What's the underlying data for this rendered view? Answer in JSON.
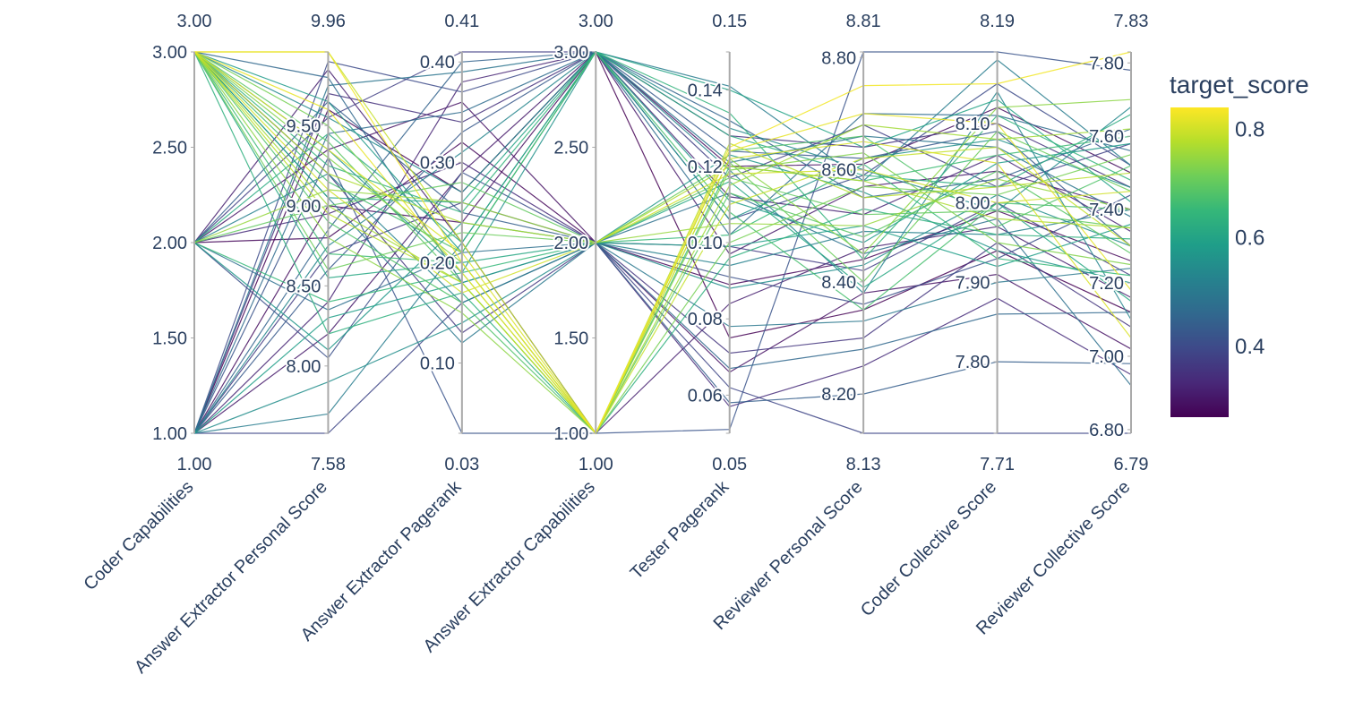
{
  "chart_data": {
    "type": "parcoords",
    "color_variable": "target_score",
    "colorscale": "Viridis",
    "color_range": [
      0.27,
      0.84
    ],
    "colorbar": {
      "title": "target_score",
      "ticks": [
        0.4,
        0.6,
        0.8
      ],
      "tick_labels": [
        "0.4",
        "0.6",
        "0.8"
      ]
    },
    "dimensions": [
      {
        "label": "Coder Capabilities",
        "range": [
          1.0,
          3.0
        ],
        "range_labels": {
          "min": "1.00",
          "max": "3.00"
        },
        "ticks": [
          1.0,
          1.5,
          2.0,
          2.5,
          3.0
        ],
        "tick_labels": [
          "1.00",
          "1.50",
          "2.00",
          "2.50",
          "3.00"
        ]
      },
      {
        "label": "Answer Extractor Personal Score",
        "range": [
          7.58,
          9.96
        ],
        "range_labels": {
          "min": "7.58",
          "max": "9.96"
        },
        "ticks": [
          8.0,
          8.5,
          9.0,
          9.5
        ],
        "tick_labels": [
          "8.00",
          "8.50",
          "9.00",
          "9.50"
        ]
      },
      {
        "label": "Answer Extractor Pagerank",
        "range": [
          0.03,
          0.41
        ],
        "range_labels": {
          "min": "0.03",
          "max": "0.41"
        },
        "ticks": [
          0.1,
          0.2,
          0.3,
          0.4
        ],
        "tick_labels": [
          "0.10",
          "0.20",
          "0.30",
          "0.40"
        ]
      },
      {
        "label": "Answer Extractor Capabilities",
        "range": [
          1.0,
          3.0
        ],
        "range_labels": {
          "min": "1.00",
          "max": "3.00"
        },
        "ticks": [
          1.0,
          1.5,
          2.0,
          2.5,
          3.0
        ],
        "tick_labels": [
          "1.00",
          "1.50",
          "2.00",
          "2.50",
          "3.00"
        ]
      },
      {
        "label": "Tester Pagerank",
        "range": [
          0.05,
          0.15
        ],
        "range_labels": {
          "min": "0.05",
          "max": "0.15"
        },
        "ticks": [
          0.06,
          0.08,
          0.1,
          0.12,
          0.14
        ],
        "tick_labels": [
          "0.06",
          "0.08",
          "0.10",
          "0.12",
          "0.14"
        ]
      },
      {
        "label": "Reviewer Personal Score",
        "range": [
          8.13,
          8.81
        ],
        "range_labels": {
          "min": "8.13",
          "max": "8.81"
        },
        "ticks": [
          8.2,
          8.4,
          8.6,
          8.8
        ],
        "tick_labels": [
          "8.20",
          "8.40",
          "8.60",
          "8.80"
        ]
      },
      {
        "label": "Coder Collective Score",
        "range": [
          7.71,
          8.19
        ],
        "range_labels": {
          "min": "7.71",
          "max": "8.19"
        },
        "ticks": [
          7.8,
          7.9,
          8.0,
          8.1
        ],
        "tick_labels": [
          "7.80",
          "7.90",
          "8.00",
          "8.10"
        ]
      },
      {
        "label": "Reviewer Collective Score",
        "range": [
          6.79,
          7.83
        ],
        "range_labels": {
          "min": "6.79",
          "max": "7.83"
        },
        "ticks": [
          6.8,
          7.0,
          7.2,
          7.4,
          7.6,
          7.8
        ],
        "tick_labels": [
          "6.80",
          "7.00",
          "7.20",
          "7.40",
          "7.60",
          "7.80"
        ]
      }
    ],
    "lines": [
      {
        "score": 0.83,
        "values": [
          3,
          9.96,
          0.2,
          1,
          0.125,
          8.75,
          8.15,
          7.83
        ]
      },
      {
        "score": 0.82,
        "values": [
          3,
          9.6,
          0.19,
          1,
          0.124,
          8.7,
          8.1,
          7.18
        ]
      },
      {
        "score": 0.81,
        "values": [
          3,
          9.35,
          0.21,
          1,
          0.122,
          8.65,
          8.05,
          7.05
        ]
      },
      {
        "score": 0.8,
        "values": [
          3,
          9.1,
          0.17,
          2,
          0.118,
          8.6,
          8.0,
          7.45
        ]
      },
      {
        "score": 0.79,
        "values": [
          3,
          9.96,
          0.22,
          1,
          0.11,
          8.62,
          8.07,
          7.3
        ]
      },
      {
        "score": 0.78,
        "values": [
          3,
          8.95,
          0.18,
          1,
          0.126,
          8.55,
          8.02,
          7.5
        ]
      },
      {
        "score": 0.77,
        "values": [
          3,
          9.2,
          0.24,
          2,
          0.12,
          8.58,
          7.98,
          7.35
        ]
      },
      {
        "score": 0.76,
        "values": [
          3,
          9.0,
          0.18,
          1,
          0.115,
          8.68,
          8.08,
          7.62
        ]
      },
      {
        "score": 0.75,
        "values": [
          2,
          9.1,
          0.26,
          2,
          0.105,
          8.5,
          8.03,
          7.4
        ]
      },
      {
        "score": 0.74,
        "values": [
          3,
          8.8,
          0.15,
          1,
          0.122,
          8.45,
          8.12,
          7.7
        ]
      },
      {
        "score": 0.73,
        "values": [
          3,
          9.3,
          0.2,
          1,
          0.119,
          8.63,
          7.95,
          7.25
        ]
      },
      {
        "score": 0.72,
        "values": [
          3,
          9.5,
          0.19,
          1,
          0.1,
          8.57,
          8.01,
          7.55
        ]
      },
      {
        "score": 0.71,
        "values": [
          3,
          8.6,
          0.23,
          2,
          0.121,
          8.4,
          8.09,
          7.45
        ]
      },
      {
        "score": 0.7,
        "values": [
          2,
          9.0,
          0.28,
          2,
          0.117,
          8.52,
          7.99,
          7.35
        ]
      },
      {
        "score": 0.69,
        "values": [
          3,
          9.4,
          0.18,
          1,
          0.113,
          8.48,
          8.04,
          7.28
        ]
      },
      {
        "score": 0.68,
        "values": [
          3,
          8.9,
          0.16,
          1,
          0.124,
          8.66,
          7.97,
          7.52
        ]
      },
      {
        "score": 0.67,
        "values": [
          3,
          9.15,
          0.21,
          3,
          0.108,
          8.35,
          8.0,
          7.4
        ]
      },
      {
        "score": 0.66,
        "values": [
          3,
          8.7,
          0.2,
          1,
          0.12,
          8.58,
          8.06,
          7.6
        ]
      },
      {
        "score": 0.65,
        "values": [
          2,
          8.4,
          0.19,
          2,
          0.102,
          8.61,
          7.93,
          7.22
        ]
      },
      {
        "score": 0.64,
        "values": [
          3,
          9.25,
          0.25,
          3,
          0.134,
          8.44,
          8.11,
          7.48
        ]
      },
      {
        "score": 0.63,
        "values": [
          3,
          8.2,
          0.17,
          1,
          0.096,
          8.53,
          7.96,
          7.32
        ]
      },
      {
        "score": 0.62,
        "values": [
          2,
          9.45,
          0.22,
          3,
          0.128,
          8.59,
          8.02,
          7.66
        ]
      },
      {
        "score": 0.61,
        "values": [
          3,
          8.55,
          0.2,
          2,
          0.116,
          8.39,
          8.0,
          7.15
        ]
      },
      {
        "score": 0.6,
        "values": [
          3,
          9.05,
          0.26,
          3,
          0.14,
          8.64,
          8.13,
          7.42
        ]
      },
      {
        "score": 0.59,
        "values": [
          1,
          8.3,
          0.18,
          2,
          0.099,
          8.5,
          7.92,
          7.36
        ]
      },
      {
        "score": 0.58,
        "values": [
          3,
          9.65,
          0.21,
          3,
          0.111,
          8.47,
          8.05,
          7.58
        ]
      },
      {
        "score": 0.57,
        "values": [
          2,
          8.1,
          0.24,
          2,
          0.123,
          8.56,
          7.94,
          7.2
        ]
      },
      {
        "score": 0.56,
        "values": [
          3,
          9.35,
          0.19,
          3,
          0.106,
          8.62,
          8.08,
          7.46
        ]
      },
      {
        "score": 0.55,
        "values": [
          1,
          7.9,
          0.14,
          2,
          0.088,
          8.43,
          8.01,
          7.3
        ]
      },
      {
        "score": 0.54,
        "values": [
          3,
          9.55,
          0.27,
          3,
          0.13,
          8.6,
          7.99,
          7.68
        ]
      },
      {
        "score": 0.53,
        "values": [
          1,
          8.75,
          0.31,
          3,
          0.119,
          8.38,
          8.14,
          7.1
        ]
      },
      {
        "score": 0.52,
        "values": [
          2,
          9.2,
          0.16,
          2,
          0.094,
          8.49,
          7.96,
          7.4
        ]
      },
      {
        "score": 0.51,
        "values": [
          1,
          7.7,
          0.22,
          3,
          0.141,
          8.58,
          8.18,
          7.52
        ]
      },
      {
        "score": 0.5,
        "values": [
          3,
          9.05,
          0.12,
          2,
          0.078,
          8.33,
          7.9,
          7.24
        ]
      },
      {
        "score": 0.49,
        "values": [
          1,
          9.75,
          0.39,
          3,
          0.121,
          8.66,
          8.07,
          7.38
        ]
      },
      {
        "score": 0.48,
        "values": [
          2,
          8.35,
          0.21,
          2,
          0.113,
          8.45,
          7.98,
          6.92
        ]
      },
      {
        "score": 0.47,
        "values": [
          1,
          9.45,
          0.35,
          3,
          0.102,
          8.7,
          8.11,
          7.56
        ]
      },
      {
        "score": 0.46,
        "values": [
          3,
          9.8,
          0.18,
          2,
          0.067,
          8.28,
          7.86,
          7.12
        ]
      },
      {
        "score": 0.45,
        "values": [
          1,
          8.85,
          0.4,
          3,
          0.132,
          8.55,
          8.03,
          7.62
        ]
      },
      {
        "score": 0.44,
        "values": [
          2,
          9.65,
          0.25,
          2,
          0.058,
          8.2,
          7.8,
          6.98
        ]
      },
      {
        "score": 0.43,
        "values": [
          1,
          8.6,
          0.33,
          3,
          0.124,
          8.62,
          8.09,
          7.3
        ]
      },
      {
        "score": 0.42,
        "values": [
          1,
          9.3,
          0.03,
          1,
          0.051,
          8.81,
          8.19,
          7.78
        ]
      },
      {
        "score": 0.41,
        "values": [
          2,
          8.05,
          0.29,
          2,
          0.091,
          8.36,
          7.93,
          7.44
        ]
      },
      {
        "score": 0.4,
        "values": [
          1,
          9.9,
          0.37,
          3,
          0.106,
          8.59,
          8.15,
          7.52
        ]
      },
      {
        "score": 0.39,
        "values": [
          1,
          7.58,
          0.16,
          2,
          0.062,
          8.13,
          7.71,
          6.79
        ]
      },
      {
        "score": 0.38,
        "values": [
          2,
          9.55,
          0.41,
          3,
          0.117,
          8.68,
          8.02,
          7.58
        ]
      },
      {
        "score": 0.37,
        "values": [
          1,
          8.7,
          0.26,
          2,
          0.099,
          8.42,
          8.0,
          7.22
        ]
      },
      {
        "score": 0.36,
        "values": [
          3,
          9.2,
          0.13,
          2,
          0.071,
          8.3,
          7.95,
          7.08
        ]
      },
      {
        "score": 0.35,
        "values": [
          1,
          9.7,
          0.34,
          3,
          0.128,
          8.64,
          8.1,
          7.46
        ]
      },
      {
        "score": 0.34,
        "values": [
          2,
          8.95,
          0.3,
          2,
          0.057,
          8.25,
          7.88,
          6.95
        ]
      },
      {
        "score": 0.33,
        "values": [
          1,
          8.4,
          0.38,
          3,
          0.112,
          8.52,
          8.06,
          7.34
        ]
      },
      {
        "score": 0.32,
        "values": [
          2,
          9.85,
          0.22,
          1,
          0.084,
          8.46,
          7.97,
          7.16
        ]
      },
      {
        "score": 0.31,
        "values": [
          1,
          8.2,
          0.29,
          3,
          0.097,
          8.57,
          8.04,
          7.4
        ]
      },
      {
        "score": 0.3,
        "values": [
          2,
          9.35,
          0.36,
          2,
          0.066,
          8.38,
          7.91,
          7.02
        ]
      },
      {
        "score": 0.29,
        "values": [
          1,
          9.0,
          0.24,
          3,
          0.12,
          8.61,
          8.12,
          7.5
        ]
      },
      {
        "score": 0.28,
        "values": [
          2,
          8.8,
          0.32,
          2,
          0.089,
          8.44,
          7.99,
          7.26
        ]
      },
      {
        "score": 0.27,
        "values": [
          1,
          9.6,
          0.27,
          3,
          0.075,
          8.35,
          7.94,
          7.12
        ]
      }
    ]
  }
}
